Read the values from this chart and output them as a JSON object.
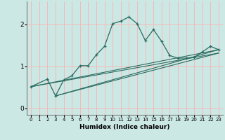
{
  "xlabel": "Humidex (Indice chaleur)",
  "bg_color": "#cce8e4",
  "grid_color": "#f5b8b8",
  "line_color": "#2a6b60",
  "xlim": [
    -0.5,
    23.5
  ],
  "ylim": [
    -0.15,
    2.55
  ],
  "yticks": [
    0,
    1,
    2
  ],
  "xticks": [
    0,
    1,
    2,
    3,
    4,
    5,
    6,
    7,
    8,
    9,
    10,
    11,
    12,
    13,
    14,
    15,
    16,
    17,
    18,
    19,
    20,
    21,
    22,
    23
  ],
  "curve1_x": [
    0,
    2,
    3,
    4,
    5,
    6,
    7,
    8,
    9,
    10,
    11,
    12,
    13,
    14,
    15,
    16,
    17,
    18,
    19,
    20,
    21,
    22,
    23
  ],
  "curve1_y": [
    0.52,
    0.7,
    0.3,
    0.68,
    0.78,
    1.02,
    1.02,
    1.28,
    1.48,
    2.02,
    2.08,
    2.18,
    2.02,
    1.62,
    1.88,
    1.6,
    1.26,
    1.2,
    1.2,
    1.22,
    1.35,
    1.48,
    1.4
  ],
  "line1_x": [
    0,
    23
  ],
  "line1_y": [
    0.52,
    1.4
  ],
  "line2_x": [
    3,
    23
  ],
  "line2_y": [
    0.3,
    1.4
  ],
  "line3_x": [
    0,
    23
  ],
  "line3_y": [
    0.52,
    1.32
  ],
  "line4_x": [
    3,
    23
  ],
  "line4_y": [
    0.3,
    1.32
  ]
}
